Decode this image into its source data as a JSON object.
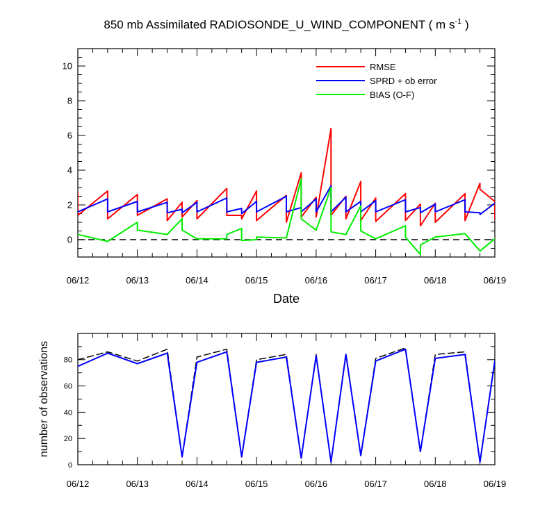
{
  "figure": {
    "title": "850 mb Assimilated RADIOSONDE_U_WIND_COMPONENT ( m s",
    "title_sup": "-1",
    "title_close": " )",
    "xlabel": "Date"
  },
  "chart_data": [
    {
      "type": "line",
      "title": "850 mb Assimilated RADIOSONDE_U_WIND_COMPONENT ( m s-1 )",
      "xlabel": "Date",
      "ylabel": "",
      "xlim": [
        0,
        7
      ],
      "ylim": [
        -1,
        11
      ],
      "yticks": [
        0,
        2,
        4,
        6,
        8,
        10
      ],
      "xtick_labels": [
        "06/12",
        "06/13",
        "06/14",
        "06/15",
        "06/16",
        "06/17",
        "06/18",
        "06/19"
      ],
      "legend_position": "top-right",
      "reference_line": {
        "y": 0,
        "style": "dashed",
        "color": "#000000"
      },
      "series": [
        {
          "name": "RMSE",
          "color": "#ff0000",
          "segments": [
            [
              [
                0.0,
                2.7
              ],
              [
                0.0,
                1.4
              ],
              [
                0.5,
                2.8
              ],
              [
                0.5,
                1.2
              ],
              [
                1.0,
                2.6
              ],
              [
                1.0,
                1.4
              ],
              [
                1.5,
                2.35
              ],
              [
                1.5,
                1.1
              ],
              [
                1.75,
                2.15
              ],
              [
                1.75,
                1.3
              ],
              [
                2.0,
                2.25
              ],
              [
                2.0,
                1.2
              ],
              [
                2.5,
                2.95
              ],
              [
                2.5,
                1.4
              ],
              [
                2.75,
                1.4
              ],
              [
                2.75,
                1.2
              ],
              [
                3.0,
                2.8
              ],
              [
                3.0,
                1.1
              ],
              [
                3.5,
                2.55
              ],
              [
                3.5,
                1.0
              ],
              [
                3.75,
                3.85
              ],
              [
                3.75,
                1.3
              ],
              [
                4.0,
                2.45
              ],
              [
                4.0,
                1.3
              ],
              [
                4.25,
                6.4
              ],
              [
                4.25,
                1.4
              ],
              [
                4.5,
                2.5
              ],
              [
                4.5,
                1.2
              ],
              [
                4.75,
                3.35
              ],
              [
                4.75,
                1.1
              ],
              [
                5.0,
                2.4
              ],
              [
                5.0,
                1.05
              ],
              [
                5.5,
                2.65
              ],
              [
                5.5,
                1.1
              ],
              [
                5.75,
                2.05
              ],
              [
                5.75,
                0.8
              ],
              [
                6.0,
                2.1
              ],
              [
                6.0,
                1.0
              ],
              [
                6.5,
                2.65
              ],
              [
                6.5,
                1.1
              ],
              [
                6.75,
                3.25
              ],
              [
                6.75,
                2.9
              ],
              [
                7.0,
                2.2
              ],
              [
                7.0,
                1.2
              ]
            ]
          ]
        },
        {
          "name": "SPRD + ob error",
          "color": "#0000ff",
          "segments": [
            [
              [
                0.0,
                1.6
              ],
              [
                0.5,
                2.35
              ],
              [
                0.5,
                1.6
              ],
              [
                1.0,
                2.2
              ],
              [
                1.0,
                1.6
              ],
              [
                1.5,
                2.15
              ],
              [
                1.5,
                1.55
              ],
              [
                1.75,
                1.75
              ],
              [
                1.75,
                1.55
              ],
              [
                2.0,
                2.15
              ],
              [
                2.0,
                1.6
              ],
              [
                2.5,
                2.4
              ],
              [
                2.5,
                1.6
              ],
              [
                2.75,
                1.8
              ],
              [
                2.75,
                1.5
              ],
              [
                3.0,
                2.2
              ],
              [
                3.0,
                1.6
              ],
              [
                3.5,
                2.5
              ],
              [
                3.5,
                1.6
              ],
              [
                3.75,
                1.85
              ],
              [
                3.75,
                1.6
              ],
              [
                4.0,
                2.35
              ],
              [
                4.0,
                1.6
              ],
              [
                4.25,
                3.1
              ],
              [
                4.25,
                1.6
              ],
              [
                4.5,
                2.45
              ],
              [
                4.5,
                1.6
              ],
              [
                4.75,
                2.2
              ],
              [
                4.75,
                1.6
              ],
              [
                5.0,
                2.25
              ],
              [
                5.0,
                1.6
              ],
              [
                5.5,
                2.3
              ],
              [
                5.5,
                1.6
              ],
              [
                5.75,
                1.85
              ],
              [
                5.75,
                1.55
              ],
              [
                6.0,
                2.05
              ],
              [
                6.0,
                1.6
              ],
              [
                6.5,
                2.3
              ],
              [
                6.5,
                1.6
              ],
              [
                6.75,
                1.55
              ],
              [
                6.75,
                1.45
              ],
              [
                7.0,
                2.1
              ]
            ]
          ]
        },
        {
          "name": "BIAS (O-F)",
          "color": "#00ee00",
          "segments": [
            [
              [
                0.0,
                0.3
              ],
              [
                0.5,
                -0.1
              ],
              [
                1.0,
                1.0
              ],
              [
                1.0,
                0.55
              ],
              [
                1.5,
                0.3
              ],
              [
                1.75,
                1.2
              ],
              [
                1.75,
                0.55
              ],
              [
                2.0,
                0.05
              ],
              [
                2.5,
                0.05
              ],
              [
                2.5,
                0.3
              ],
              [
                2.75,
                0.65
              ],
              [
                2.75,
                -0.05
              ],
              [
                3.0,
                0.0
              ],
              [
                3.0,
                0.15
              ],
              [
                3.5,
                0.1
              ],
              [
                3.75,
                3.5
              ],
              [
                3.75,
                1.2
              ],
              [
                4.0,
                0.55
              ],
              [
                4.25,
                3.0
              ],
              [
                4.25,
                0.45
              ],
              [
                4.5,
                0.3
              ],
              [
                4.75,
                1.95
              ],
              [
                4.75,
                0.5
              ],
              [
                5.0,
                0.05
              ],
              [
                5.5,
                0.8
              ],
              [
                5.5,
                0.15
              ],
              [
                5.75,
                -0.85
              ],
              [
                5.75,
                -0.3
              ],
              [
                6.0,
                0.15
              ],
              [
                6.5,
                0.35
              ],
              [
                6.75,
                -0.65
              ],
              [
                7.0,
                0.05
              ]
            ]
          ]
        }
      ]
    },
    {
      "type": "line",
      "title": "",
      "xlabel": "",
      "ylabel": "number of observations",
      "xlim": [
        0,
        7
      ],
      "ylim": [
        0,
        100
      ],
      "yticks": [
        0,
        20,
        40,
        60,
        80
      ],
      "xtick_labels": [
        "06/12",
        "06/13",
        "06/14",
        "06/15",
        "06/16",
        "06/17",
        "06/18",
        "06/19"
      ],
      "series": [
        {
          "color": "#000000",
          "dash": "dashed",
          "x": [
            0.0,
            0.5,
            1.0,
            1.5,
            1.75,
            2.0,
            2.5,
            2.75,
            3.0,
            3.5,
            3.75,
            4.0,
            4.25,
            4.5,
            4.75,
            5.0,
            5.5,
            5.75,
            6.0,
            6.5,
            6.75,
            7.0
          ],
          "y": [
            80,
            86,
            79,
            88,
            6,
            82,
            88,
            6,
            80,
            84,
            5,
            84,
            2,
            85,
            7,
            81,
            89,
            10,
            84,
            86,
            2,
            80
          ]
        },
        {
          "color": "#0000ff",
          "dash": "solid",
          "x": [
            0.0,
            0.5,
            1.0,
            1.5,
            1.75,
            2.0,
            2.5,
            2.75,
            3.0,
            3.5,
            3.75,
            4.0,
            4.25,
            4.5,
            4.75,
            5.0,
            5.5,
            5.75,
            6.0,
            6.5,
            6.75,
            7.0
          ],
          "y": [
            75,
            85,
            77,
            85,
            6,
            78,
            86,
            6,
            78,
            82,
            5,
            83,
            2,
            84,
            7,
            79,
            88,
            10,
            81,
            84,
            2,
            79
          ]
        }
      ]
    }
  ]
}
